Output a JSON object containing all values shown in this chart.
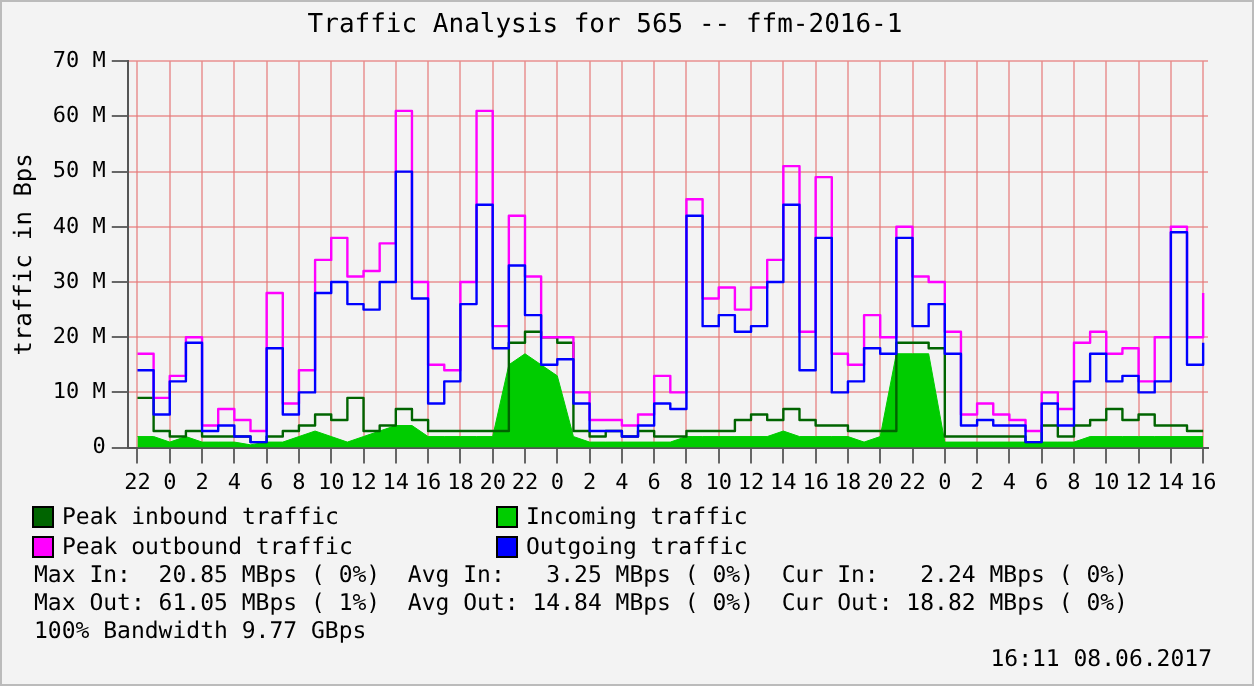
{
  "chart_data": {
    "type": "step",
    "title": "Traffic Analysis for 565 -- ffm-2016-1",
    "ylabel": "traffic in Bps",
    "x": [
      "2017-06-05T22:00",
      "2017-06-05T23:00",
      "2017-06-06T00:00",
      "2017-06-06T01:00",
      "2017-06-06T02:00",
      "2017-06-06T03:00",
      "2017-06-06T04:00",
      "2017-06-06T05:00",
      "2017-06-06T06:00",
      "2017-06-06T07:00",
      "2017-06-06T08:00",
      "2017-06-06T09:00",
      "2017-06-06T10:00",
      "2017-06-06T11:00",
      "2017-06-06T12:00",
      "2017-06-06T13:00",
      "2017-06-06T14:00",
      "2017-06-06T15:00",
      "2017-06-06T16:00",
      "2017-06-06T17:00",
      "2017-06-06T18:00",
      "2017-06-06T19:00",
      "2017-06-06T20:00",
      "2017-06-06T21:00",
      "2017-06-06T22:00",
      "2017-06-06T23:00",
      "2017-06-07T00:00",
      "2017-06-07T01:00",
      "2017-06-07T02:00",
      "2017-06-07T03:00",
      "2017-06-07T04:00",
      "2017-06-07T05:00",
      "2017-06-07T06:00",
      "2017-06-07T07:00",
      "2017-06-07T08:00",
      "2017-06-07T09:00",
      "2017-06-07T10:00",
      "2017-06-07T11:00",
      "2017-06-07T12:00",
      "2017-06-07T13:00",
      "2017-06-07T14:00",
      "2017-06-07T15:00",
      "2017-06-07T16:00",
      "2017-06-07T17:00",
      "2017-06-07T18:00",
      "2017-06-07T19:00",
      "2017-06-07T20:00",
      "2017-06-07T21:00",
      "2017-06-07T22:00",
      "2017-06-07T23:00",
      "2017-06-08T00:00",
      "2017-06-08T01:00",
      "2017-06-08T02:00",
      "2017-06-08T03:00",
      "2017-06-08T04:00",
      "2017-06-08T05:00",
      "2017-06-08T06:00",
      "2017-06-08T07:00",
      "2017-06-08T08:00",
      "2017-06-08T09:00",
      "2017-06-08T10:00",
      "2017-06-08T11:00",
      "2017-06-08T12:00",
      "2017-06-08T13:00",
      "2017-06-08T14:00",
      "2017-06-08T15:00",
      "2017-06-08T16:00"
    ],
    "series": [
      {
        "name": "Peak inbound traffic",
        "color": "#006400",
        "values": [
          9,
          3,
          2,
          3,
          2,
          2,
          2,
          1,
          2,
          3,
          4,
          6,
          5,
          9,
          3,
          4,
          7,
          5,
          3,
          3,
          3,
          3,
          3,
          19,
          21,
          20,
          19,
          3,
          2,
          3,
          2,
          3,
          2,
          2,
          3,
          3,
          3,
          5,
          6,
          5,
          7,
          5,
          4,
          4,
          3,
          3,
          3,
          19,
          19,
          18,
          2,
          2,
          2,
          2,
          2,
          1,
          4,
          2,
          4,
          5,
          7,
          5,
          6,
          4,
          4,
          3,
          3
        ]
      },
      {
        "name": "Incoming traffic",
        "type": "area",
        "color": "#00cc00",
        "values": [
          2,
          2,
          1,
          2,
          1,
          1,
          1,
          0.5,
          1,
          1,
          2,
          3,
          2,
          1,
          2,
          3,
          4,
          4,
          2,
          2,
          2,
          2,
          2,
          15,
          17,
          15,
          13,
          2,
          1,
          1,
          1,
          1,
          1,
          1,
          2,
          2,
          2,
          2,
          2,
          2,
          3,
          2,
          2,
          2,
          2,
          1,
          2,
          17,
          17,
          17,
          1,
          1,
          1,
          1,
          1,
          1,
          1,
          1,
          1,
          2,
          2,
          2,
          2,
          2,
          2,
          2,
          2
        ]
      },
      {
        "name": "Peak outbound traffic",
        "color": "#ff00ff",
        "values": [
          17,
          9,
          13,
          20,
          4,
          7,
          5,
          3,
          28,
          8,
          14,
          34,
          38,
          31,
          32,
          37,
          61,
          30,
          15,
          14,
          30,
          61,
          22,
          42,
          31,
          20,
          20,
          10,
          5,
          5,
          4,
          6,
          13,
          10,
          45,
          27,
          29,
          25,
          29,
          34,
          51,
          21,
          49,
          17,
          15,
          24,
          20,
          40,
          31,
          30,
          21,
          6,
          8,
          6,
          5,
          3,
          10,
          7,
          19,
          21,
          17,
          18,
          12,
          20,
          40,
          20,
          28
        ]
      },
      {
        "name": "Outgoing traffic",
        "color": "#0000ff",
        "values": [
          14,
          6,
          12,
          19,
          3,
          4,
          2,
          1,
          18,
          6,
          10,
          28,
          30,
          26,
          25,
          30,
          50,
          27,
          8,
          12,
          26,
          44,
          18,
          33,
          24,
          15,
          16,
          8,
          3,
          3,
          2,
          4,
          8,
          7,
          42,
          22,
          24,
          21,
          22,
          30,
          44,
          14,
          38,
          10,
          12,
          18,
          17,
          38,
          22,
          26,
          17,
          4,
          5,
          4,
          4,
          1,
          8,
          4,
          12,
          17,
          12,
          13,
          10,
          12,
          39,
          15,
          19
        ]
      }
    ],
    "xlim": [
      "2017-06-05T21:24",
      "2017-06-08T16:18"
    ],
    "xticks": [
      {
        "value": "2017-06-05T22:00",
        "label": "22"
      },
      {
        "value": "2017-06-06T00:00",
        "label": "0"
      },
      {
        "value": "2017-06-06T02:00",
        "label": "2"
      },
      {
        "value": "2017-06-06T04:00",
        "label": "4"
      },
      {
        "value": "2017-06-06T06:00",
        "label": "6"
      },
      {
        "value": "2017-06-06T08:00",
        "label": "8"
      },
      {
        "value": "2017-06-06T10:00",
        "label": "10"
      },
      {
        "value": "2017-06-06T12:00",
        "label": "12"
      },
      {
        "value": "2017-06-06T14:00",
        "label": "14"
      },
      {
        "value": "2017-06-06T16:00",
        "label": "16"
      },
      {
        "value": "2017-06-06T18:00",
        "label": "18"
      },
      {
        "value": "2017-06-06T20:00",
        "label": "20"
      },
      {
        "value": "2017-06-06T22:00",
        "label": "22"
      },
      {
        "value": "2017-06-07T00:00",
        "label": "0"
      },
      {
        "value": "2017-06-07T02:00",
        "label": "2"
      },
      {
        "value": "2017-06-07T04:00",
        "label": "4"
      },
      {
        "value": "2017-06-07T06:00",
        "label": "6"
      },
      {
        "value": "2017-06-07T08:00",
        "label": "8"
      },
      {
        "value": "2017-06-07T10:00",
        "label": "10"
      },
      {
        "value": "2017-06-07T12:00",
        "label": "12"
      },
      {
        "value": "2017-06-07T14:00",
        "label": "14"
      },
      {
        "value": "2017-06-07T16:00",
        "label": "16"
      },
      {
        "value": "2017-06-07T18:00",
        "label": "18"
      },
      {
        "value": "2017-06-07T20:00",
        "label": "20"
      },
      {
        "value": "2017-06-07T22:00",
        "label": "22"
      },
      {
        "value": "2017-06-08T00:00",
        "label": "0"
      },
      {
        "value": "2017-06-08T02:00",
        "label": "2"
      },
      {
        "value": "2017-06-08T04:00",
        "label": "4"
      },
      {
        "value": "2017-06-08T06:00",
        "label": "6"
      },
      {
        "value": "2017-06-08T08:00",
        "label": "8"
      },
      {
        "value": "2017-06-08T10:00",
        "label": "10"
      },
      {
        "value": "2017-06-08T12:00",
        "label": "12"
      },
      {
        "value": "2017-06-08T14:00",
        "label": "14"
      },
      {
        "value": "2017-06-08T16:00",
        "label": "16"
      }
    ],
    "ylim": [
      0,
      70
    ],
    "yticks": [
      {
        "value": 0,
        "label": "0"
      },
      {
        "value": 10,
        "label": "10 M"
      },
      {
        "value": 20,
        "label": "20 M"
      },
      {
        "value": 30,
        "label": "30 M"
      },
      {
        "value": 40,
        "label": "40 M"
      },
      {
        "value": 50,
        "label": "50 M"
      },
      {
        "value": 60,
        "label": "60 M"
      },
      {
        "value": 70,
        "label": "70 M"
      }
    ],
    "grid": true,
    "legend": "bottom",
    "annotations": [
      "Max In:  20.85 MBps ( 0%)  Avg In:   3.25 MBps ( 0%)  Cur In:   2.24 MBps ( 0%)",
      "Max Out: 61.05 MBps ( 1%)  Avg Out: 14.84 MBps ( 0%)  Cur Out: 18.82 MBps ( 0%)",
      "100% Bandwidth 9.77 GBps",
      "16:11 08.06.2017"
    ]
  }
}
